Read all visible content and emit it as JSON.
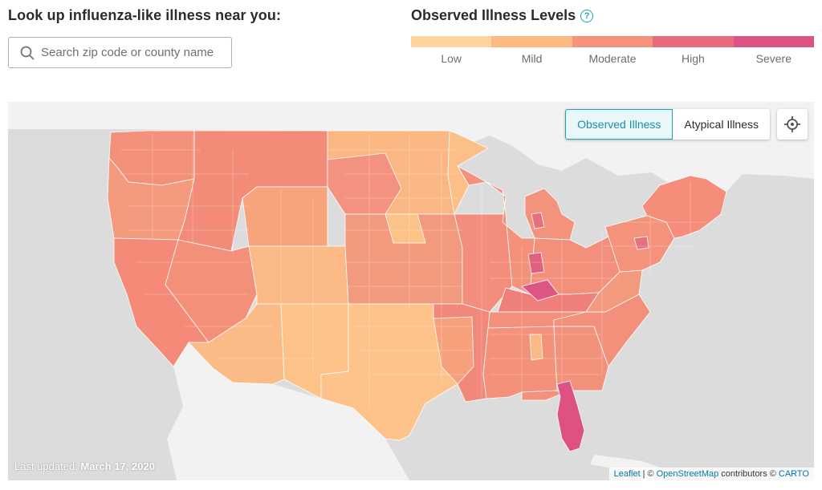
{
  "lookup": {
    "title": "Look up influenza-like illness near you:",
    "search_placeholder": "Search zip code or county name"
  },
  "legend": {
    "title": "Observed Illness Levels",
    "help_symbol": "?",
    "levels": [
      {
        "label": "Low",
        "color": "#fdd49e"
      },
      {
        "label": "Mild",
        "color": "#fdb97f"
      },
      {
        "label": "Moderate",
        "color": "#f7937a"
      },
      {
        "label": "High",
        "color": "#ea6a7c"
      },
      {
        "label": "Severe",
        "color": "#de5183"
      }
    ]
  },
  "map": {
    "toggle": {
      "observed_label": "Observed Illness",
      "atypical_label": "Atypical Illness",
      "active": "Observed Illness"
    },
    "last_updated_label": "Last updated:",
    "last_updated_date": "March 17, 2020",
    "attribution": {
      "leaflet": "Leaflet",
      "separator": "|",
      "copyright": "©",
      "osm": "OpenStreetMap",
      "contributors": "contributors ©",
      "carto": "CARTO"
    },
    "colors": {
      "land": "#f2f2f2",
      "water": "#dcdcdc",
      "border": "#ffffff",
      "accent": "#1aa3b8"
    }
  }
}
